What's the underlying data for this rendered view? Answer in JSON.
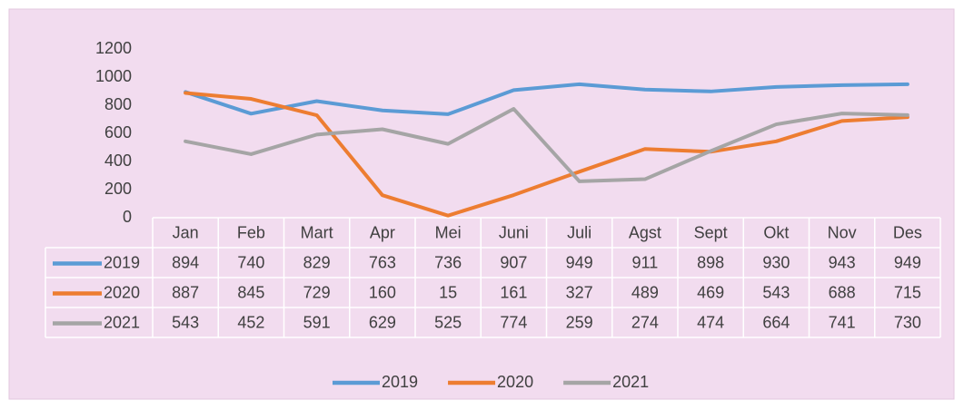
{
  "chart_data": {
    "type": "line",
    "categories": [
      "Jan",
      "Feb",
      "Mart",
      "Apr",
      "Mei",
      "Juni",
      "Juli",
      "Agst",
      "Sept",
      "Okt",
      "Nov",
      "Des"
    ],
    "series": [
      {
        "name": "2019",
        "color": "#5b9bd5",
        "values": [
          894,
          740,
          829,
          763,
          736,
          907,
          949,
          911,
          898,
          930,
          943,
          949
        ]
      },
      {
        "name": "2020",
        "color": "#ed7d31",
        "values": [
          887,
          845,
          729,
          160,
          15,
          161,
          327,
          489,
          469,
          543,
          688,
          715
        ]
      },
      {
        "name": "2021",
        "color": "#a5a5a5",
        "values": [
          543,
          452,
          591,
          629,
          525,
          774,
          259,
          274,
          474,
          664,
          741,
          730
        ]
      }
    ],
    "ylim": [
      0,
      1200
    ],
    "yticks": [
      0,
      200,
      400,
      600,
      800,
      1000,
      1200
    ],
    "grid": false,
    "legend": "bottom",
    "data_table": true
  }
}
